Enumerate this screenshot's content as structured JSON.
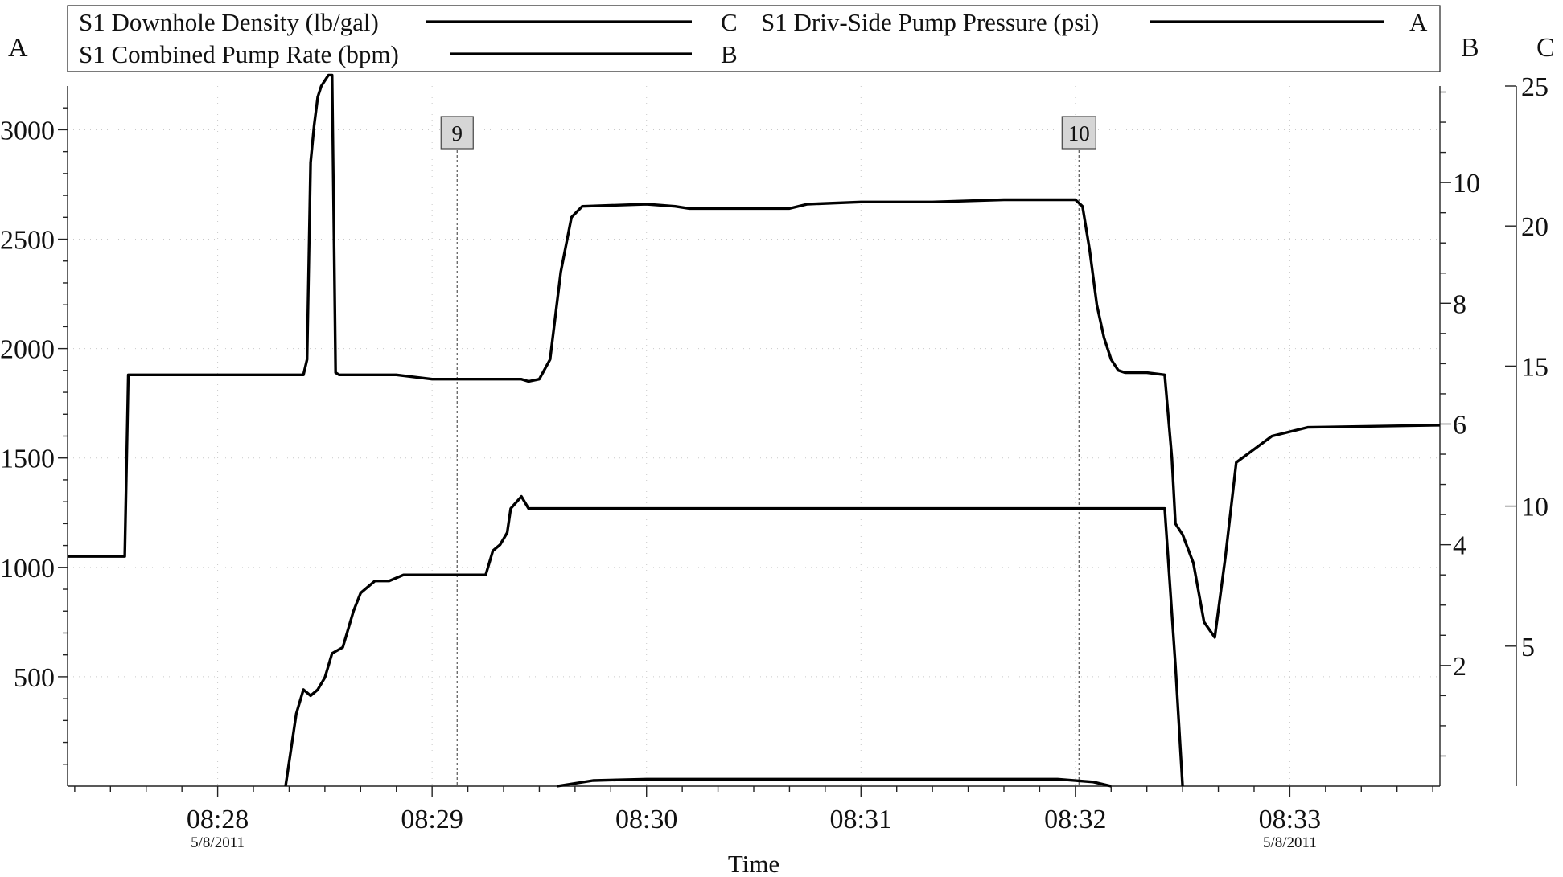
{
  "chart_data": {
    "type": "line",
    "xlabel": "Time",
    "x_ticks": [
      {
        "label": "08:28",
        "date": "5/8/2011"
      },
      {
        "label": "08:29",
        "date": ""
      },
      {
        "label": "08:30",
        "date": ""
      },
      {
        "label": "08:31",
        "date": ""
      },
      {
        "label": "08:32",
        "date": ""
      },
      {
        "label": "08:33",
        "date": "5/8/2011"
      }
    ],
    "xlim": [
      "08:27:18",
      "08:33:42"
    ],
    "axes": {
      "A": {
        "letter": "A",
        "ylim": [
          0,
          3200
        ],
        "tick_labels": [
          "500",
          "1000",
          "1500",
          "2000",
          "2500",
          "3000"
        ],
        "tick_values": [
          500,
          1000,
          1500,
          2000,
          2500,
          3000
        ]
      },
      "B": {
        "letter": "B",
        "ylim": [
          0,
          11.6
        ],
        "tick_labels": [
          "2",
          "4",
          "6",
          "8",
          "10"
        ],
        "tick_values": [
          2,
          4,
          6,
          8,
          10
        ]
      },
      "C": {
        "letter": "C",
        "ylim": [
          0,
          25
        ],
        "tick_labels": [
          "5",
          "10",
          "15",
          "20",
          "25"
        ],
        "tick_values": [
          5,
          10,
          15,
          20,
          25
        ]
      }
    },
    "legend": [
      {
        "name": "S1 Downhole Density (lb/gal)",
        "axis": "C"
      },
      {
        "name": "S1 Driv-Side Pump Pressure (psi)",
        "axis": "A"
      },
      {
        "name": "S1 Combined Pump Rate (bpm)",
        "axis": "B"
      }
    ],
    "events": [
      {
        "label": "9",
        "time": "08:29:07"
      },
      {
        "label": "10",
        "time": "08:32:01"
      }
    ],
    "series": [
      {
        "name": "S1 Driv-Side Pump Pressure (psi)",
        "axis": "A",
        "x": [
          "08:27:18",
          "08:27:34",
          "08:27:35",
          "08:28:24",
          "08:28:25",
          "08:28:26",
          "08:28:27",
          "08:28:28",
          "08:28:29",
          "08:28:31",
          "08:28:32",
          "08:28:33",
          "08:28:34",
          "08:28:50",
          "08:29:00",
          "08:29:25",
          "08:29:27",
          "08:29:30",
          "08:29:33",
          "08:29:36",
          "08:29:39",
          "08:29:42",
          "08:30:00",
          "08:30:08",
          "08:30:12",
          "08:30:40",
          "08:30:45",
          "08:31:00",
          "08:31:20",
          "08:31:40",
          "08:31:55",
          "08:32:00",
          "08:32:02",
          "08:32:04",
          "08:32:06",
          "08:32:08",
          "08:32:10",
          "08:32:12",
          "08:32:14",
          "08:32:20",
          "08:32:25",
          "08:32:27",
          "08:32:28",
          "08:32:30",
          "08:32:33",
          "08:32:36",
          "08:32:39",
          "08:32:42",
          "08:32:45",
          "08:32:55",
          "08:33:05",
          "08:33:42"
        ],
        "values": [
          1050,
          1050,
          1880,
          1880,
          1950,
          2850,
          3020,
          3150,
          3200,
          3250,
          3250,
          1890,
          1880,
          1880,
          1860,
          1860,
          1850,
          1860,
          1950,
          2350,
          2600,
          2650,
          2660,
          2650,
          2640,
          2640,
          2660,
          2670,
          2670,
          2680,
          2680,
          2680,
          2650,
          2450,
          2200,
          2050,
          1950,
          1900,
          1890,
          1890,
          1880,
          1500,
          1200,
          1150,
          1020,
          750,
          680,
          1050,
          1480,
          1600,
          1640,
          1650
        ]
      },
      {
        "name": "S1 Combined Pump Rate (bpm)",
        "axis": "B",
        "x": [
          "08:28:19",
          "08:28:22",
          "08:28:24",
          "08:28:26",
          "08:28:28",
          "08:28:30",
          "08:28:32",
          "08:28:35",
          "08:28:38",
          "08:28:40",
          "08:28:44",
          "08:28:48",
          "08:28:52",
          "08:29:00",
          "08:29:10",
          "08:29:15",
          "08:29:17",
          "08:29:19",
          "08:29:21",
          "08:29:22",
          "08:29:25",
          "08:29:27",
          "08:29:30",
          "08:29:40",
          "08:30:00",
          "08:31:00",
          "08:32:00",
          "08:32:25",
          "08:32:28",
          "08:32:30"
        ],
        "values": [
          0,
          1.2,
          1.6,
          1.5,
          1.6,
          1.8,
          2.2,
          2.3,
          2.9,
          3.2,
          3.4,
          3.4,
          3.5,
          3.5,
          3.5,
          3.5,
          3.9,
          4.0,
          4.2,
          4.6,
          4.8,
          4.6,
          4.6,
          4.6,
          4.6,
          4.6,
          4.6,
          4.6,
          2.0,
          0
        ]
      },
      {
        "name": "S1 Downhole Density (lb/gal)",
        "axis": "C",
        "x": [
          "08:29:35",
          "08:29:45",
          "08:30:00",
          "08:30:30",
          "08:31:00",
          "08:31:30",
          "08:31:55",
          "08:32:05",
          "08:32:10"
        ],
        "values": [
          0,
          0.2,
          0.25,
          0.25,
          0.25,
          0.25,
          0.25,
          0.15,
          0
        ]
      }
    ]
  }
}
